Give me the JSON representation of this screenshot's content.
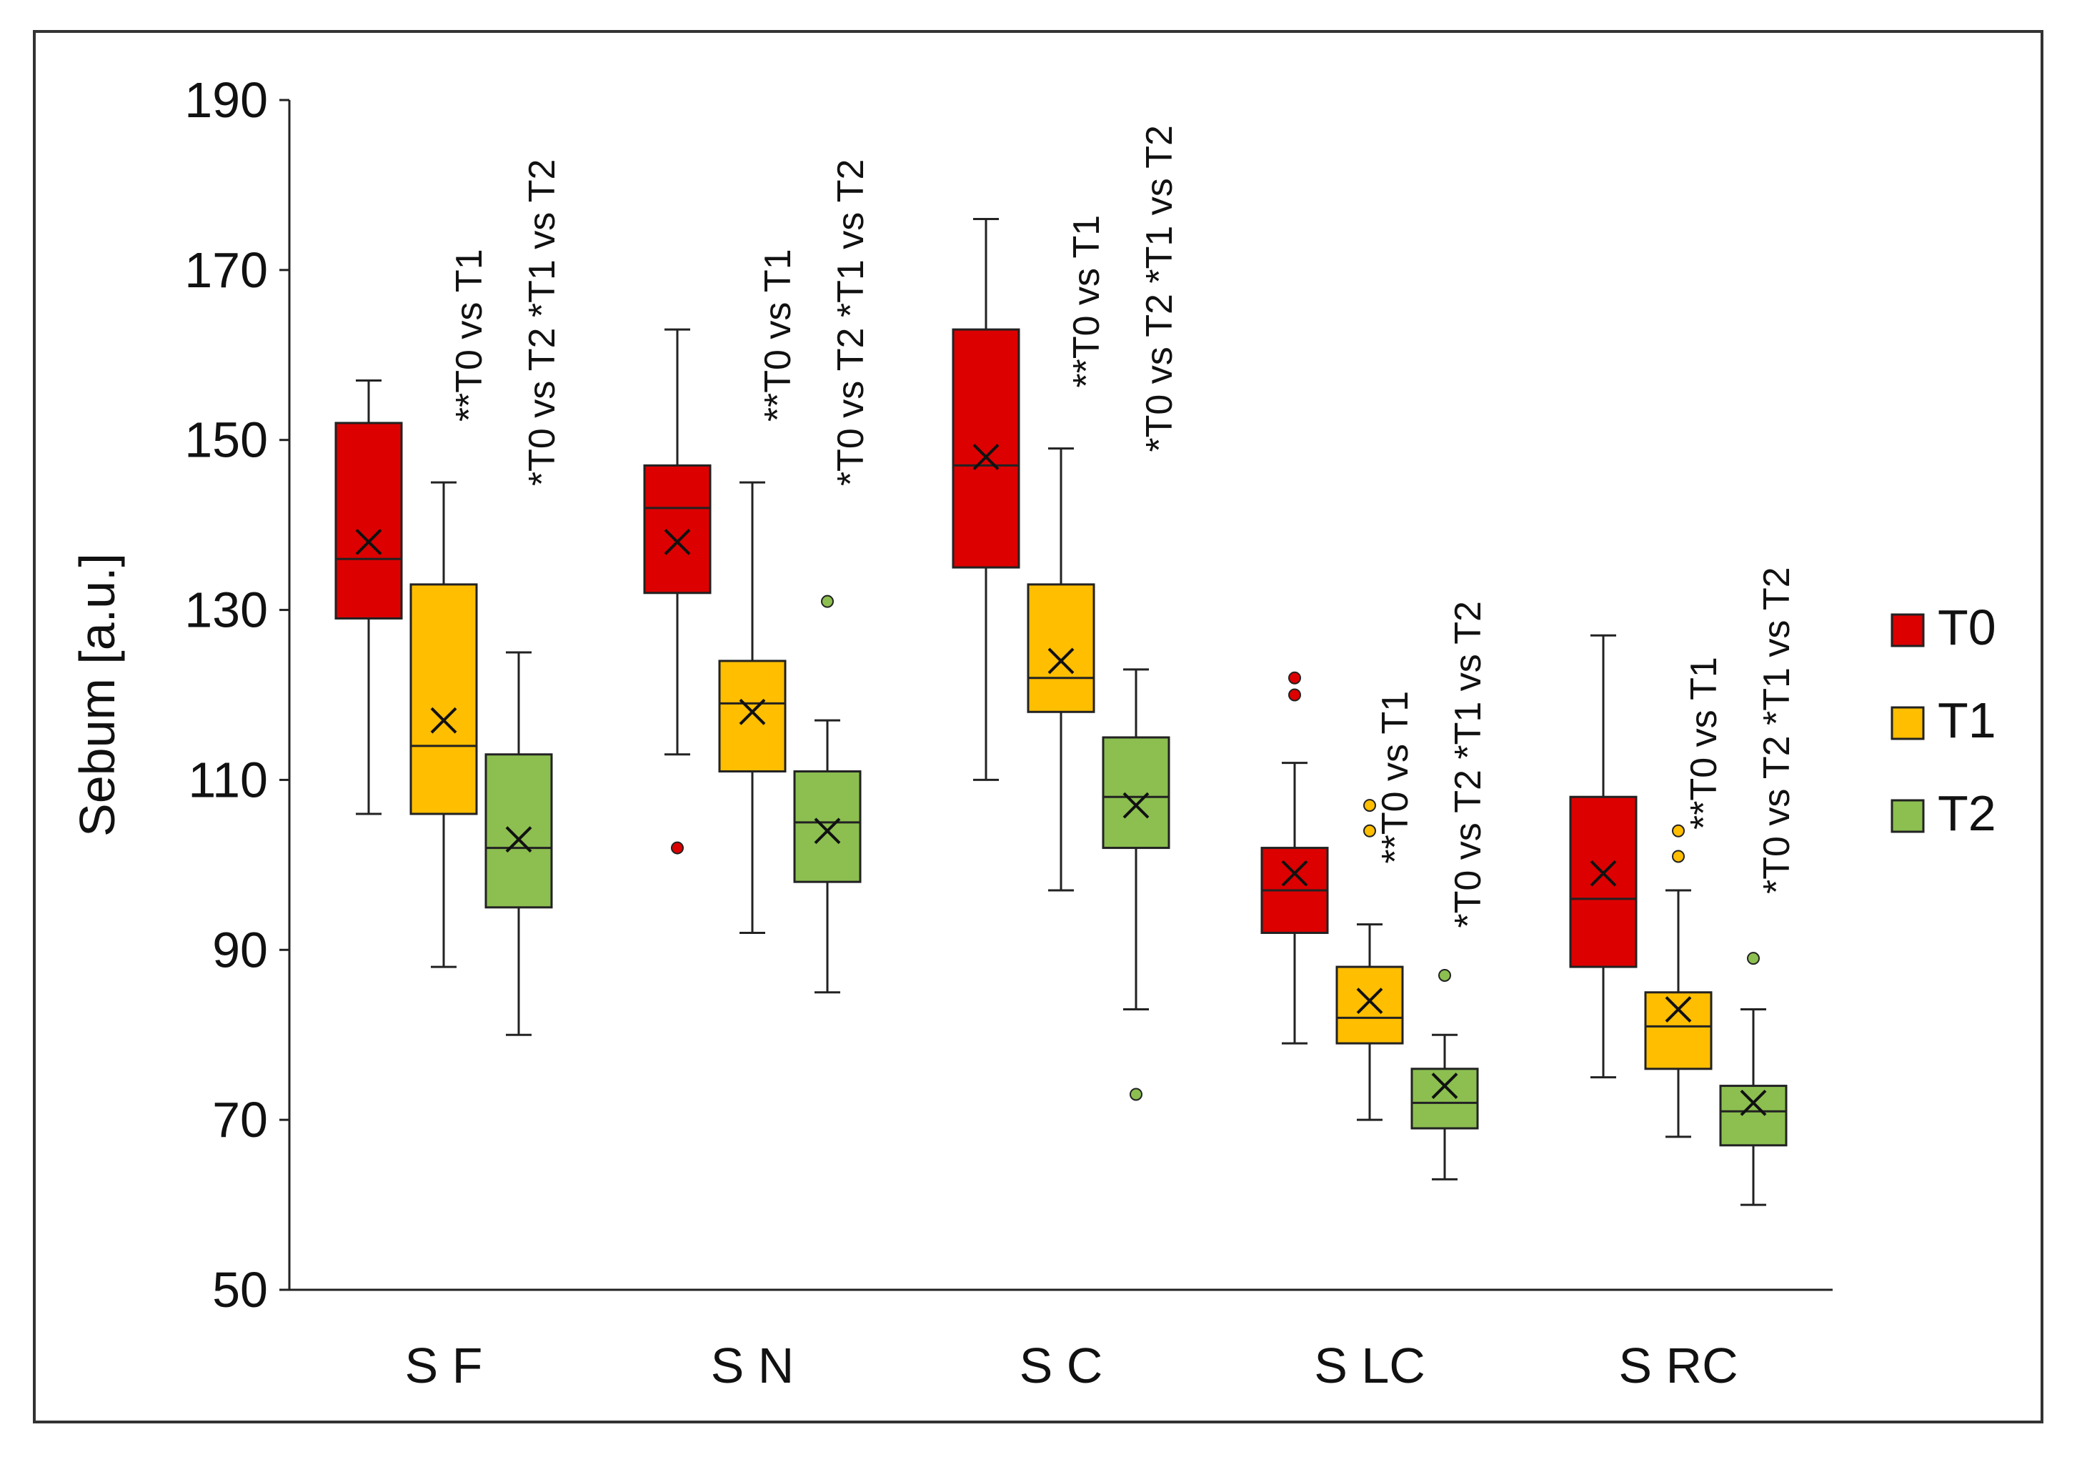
{
  "chart_data": {
    "type": "box",
    "ylabel": "Sebum [a.u.]",
    "xlabel": "",
    "ylim": [
      50,
      190
    ],
    "yticks": [
      50,
      70,
      90,
      110,
      130,
      150,
      170,
      190
    ],
    "categories": [
      "S F",
      "S N",
      "S C",
      "S LC",
      "S RC"
    ],
    "legend_position": "right",
    "series": [
      {
        "name": "T0",
        "color": "#dc0000",
        "boxes": [
          {
            "min": 106,
            "q1": 129,
            "median": 136,
            "q3": 152,
            "max": 157,
            "mean": 138,
            "outliers": []
          },
          {
            "min": 113,
            "q1": 132,
            "median": 142,
            "q3": 147,
            "max": 163,
            "mean": 138,
            "outliers": [
              102
            ]
          },
          {
            "min": 110,
            "q1": 135,
            "median": 147,
            "q3": 163,
            "max": 176,
            "mean": 148,
            "outliers": []
          },
          {
            "min": 79,
            "q1": 92,
            "median": 97,
            "q3": 102,
            "max": 112,
            "mean": 99,
            "outliers": [
              120,
              122
            ]
          },
          {
            "min": 75,
            "q1": 88,
            "median": 96,
            "q3": 108,
            "max": 127,
            "mean": 99,
            "outliers": []
          }
        ]
      },
      {
        "name": "T1",
        "color": "#ffbe00",
        "boxes": [
          {
            "min": 88,
            "q1": 106,
            "median": 114,
            "q3": 133,
            "max": 145,
            "mean": 117,
            "outliers": []
          },
          {
            "min": 92,
            "q1": 111,
            "median": 119,
            "q3": 124,
            "max": 145,
            "mean": 118,
            "outliers": []
          },
          {
            "min": 97,
            "q1": 118,
            "median": 122,
            "q3": 133,
            "max": 149,
            "mean": 124,
            "outliers": []
          },
          {
            "min": 70,
            "q1": 79,
            "median": 82,
            "q3": 88,
            "max": 93,
            "mean": 84,
            "outliers": [
              104,
              107
            ]
          },
          {
            "min": 68,
            "q1": 76,
            "median": 81,
            "q3": 85,
            "max": 97,
            "mean": 83,
            "outliers": [
              101,
              104
            ]
          }
        ]
      },
      {
        "name": "T2",
        "color": "#8cbf50",
        "boxes": [
          {
            "min": 80,
            "q1": 95,
            "median": 102,
            "q3": 113,
            "max": 125,
            "mean": 103,
            "outliers": []
          },
          {
            "min": 85,
            "q1": 98,
            "median": 105,
            "q3": 111,
            "max": 117,
            "mean": 104,
            "outliers": [
              131
            ]
          },
          {
            "min": 83,
            "q1": 102,
            "median": 108,
            "q3": 115,
            "max": 123,
            "mean": 107,
            "outliers": [
              73
            ]
          },
          {
            "min": 63,
            "q1": 69,
            "median": 72,
            "q3": 76,
            "max": 80,
            "mean": 74,
            "outliers": [
              87
            ]
          },
          {
            "min": 60,
            "q1": 67,
            "median": 71,
            "q3": 74,
            "max": 83,
            "mean": 72,
            "outliers": [
              89
            ]
          }
        ]
      }
    ],
    "annotations": [
      {
        "category": "S F",
        "lines": [
          "**T0 vs T1",
          "*T0 vs T2 *T1 vs T2"
        ]
      },
      {
        "category": "S N",
        "lines": [
          "**T0 vs T1",
          "*T0 vs T2 *T1 vs T2"
        ]
      },
      {
        "category": "S C",
        "lines": [
          "**T0 vs T1",
          "*T0 vs T2 *T1 vs T2"
        ]
      },
      {
        "category": "S LC",
        "lines": [
          "**T0 vs T1",
          "*T0 vs T2 *T1 vs T2"
        ]
      },
      {
        "category": "S RC",
        "lines": [
          "**T0 vs T1",
          "*T0 vs T2 *T1 vs T2"
        ]
      }
    ]
  }
}
